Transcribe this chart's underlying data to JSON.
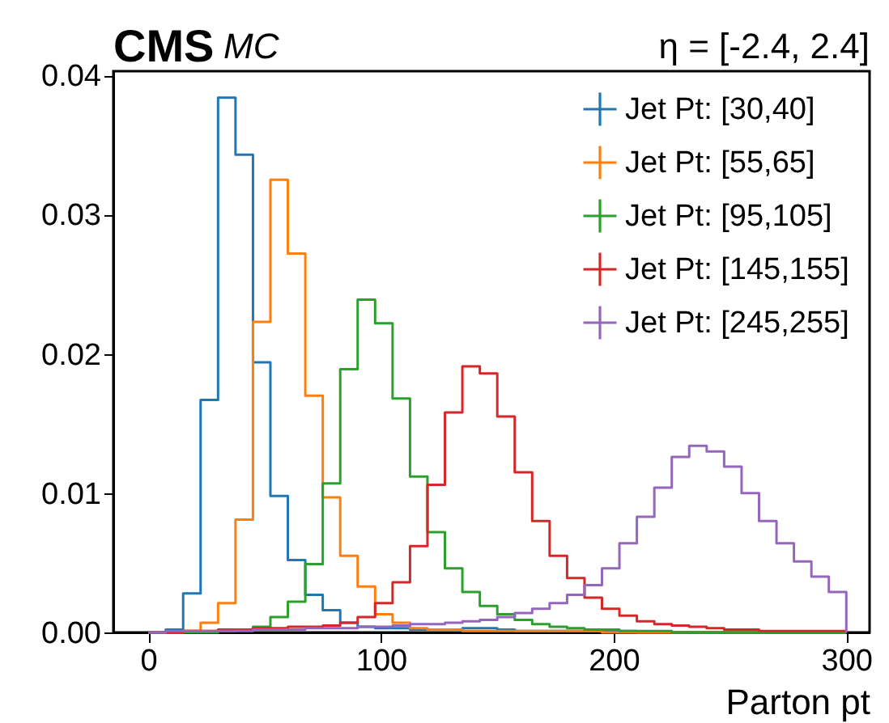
{
  "chart_data": {
    "type": "histogram",
    "title": "CMS",
    "xlabel": "Parton pt",
    "annotations": [
      "MC",
      "η = [-2.4, 2.4]"
    ],
    "bins": [
      0,
      7.5,
      15,
      22.5,
      30,
      37.5,
      45,
      52.5,
      60,
      67.5,
      75,
      82.5,
      90,
      97.5,
      105,
      112.5,
      120,
      127.5,
      135,
      142.5,
      150,
      157.5,
      165,
      172.5,
      180,
      187.5,
      195,
      202.5,
      210,
      217.5,
      225,
      232.5,
      240,
      247.5,
      255,
      262.5,
      270,
      277.5,
      285,
      292.5,
      300
    ],
    "series": [
      {
        "name": "Jet Pt: [30,40]",
        "color": "#1f77b4",
        "values": [
          0,
          0.0002,
          0.0028,
          0.0167,
          0.0384,
          0.0343,
          0.0194,
          0.0098,
          0.0052,
          0.0027,
          0.0016,
          0.0007,
          0.0004,
          0.0003,
          0.0003,
          0.0002,
          0.0002,
          0.0002,
          0.0003,
          0.0003,
          0.0002,
          0.0001,
          0.0001,
          0.0001,
          0.0001,
          0.0001,
          0.0001,
          0.0001,
          0,
          0,
          0,
          0,
          0,
          0,
          0,
          0,
          0,
          0,
          0,
          0
        ]
      },
      {
        "name": "Jet Pt: [55,65]",
        "color": "#ff7f0e",
        "values": [
          0,
          0,
          0.0001,
          0.0007,
          0.0021,
          0.0081,
          0.0223,
          0.0325,
          0.0272,
          0.017,
          0.0097,
          0.0055,
          0.0033,
          0.0013,
          0.0007,
          0.0003,
          0.0002,
          0.0002,
          0.0001,
          0.0001,
          0.0001,
          0.0001,
          0.0001,
          0.0001,
          0.0001,
          0.0001,
          0,
          0,
          0,
          0,
          0,
          0,
          0,
          0,
          0,
          0,
          0,
          0,
          0,
          0
        ]
      },
      {
        "name": "Jet Pt: [95,105]",
        "color": "#2ca02c",
        "values": [
          0,
          0,
          0,
          0,
          0.0001,
          0.0002,
          0.0004,
          0.0011,
          0.0022,
          0.0049,
          0.0107,
          0.0189,
          0.0239,
          0.0222,
          0.0168,
          0.0112,
          0.0072,
          0.0046,
          0.0029,
          0.0019,
          0.0013,
          0.0009,
          0.0006,
          0.0004,
          0.0003,
          0.0002,
          0.0002,
          0.0001,
          0.0001,
          0.0001,
          0,
          0,
          0,
          0,
          0,
          0,
          0,
          0,
          0,
          0
        ]
      },
      {
        "name": "Jet Pt: [145,155]",
        "color": "#d62728",
        "values": [
          0,
          0,
          0.0001,
          0.0001,
          0.0002,
          0.0002,
          0.0003,
          0.0003,
          0.0004,
          0.0004,
          0.0005,
          0.0007,
          0.0011,
          0.0021,
          0.0036,
          0.0062,
          0.0106,
          0.0158,
          0.0191,
          0.0186,
          0.0155,
          0.0115,
          0.008,
          0.0055,
          0.0039,
          0.0025,
          0.0017,
          0.0012,
          0.0008,
          0.0006,
          0.0005,
          0.0004,
          0.0003,
          0.0002,
          0.0002,
          0.0001,
          0.0001,
          0.0001,
          0.0001,
          0.0001
        ]
      },
      {
        "name": "Jet Pt: [245,255]",
        "color": "#9467bd",
        "values": [
          0,
          0.0001,
          0.0001,
          0.0001,
          0.0001,
          0.0001,
          0.0002,
          0.0002,
          0.0002,
          0.0003,
          0.0003,
          0.0003,
          0.0004,
          0.0004,
          0.0005,
          0.0006,
          0.0006,
          0.0007,
          0.0008,
          0.0009,
          0.0011,
          0.0014,
          0.0017,
          0.0021,
          0.0027,
          0.0034,
          0.0046,
          0.0064,
          0.0083,
          0.0104,
          0.0126,
          0.0134,
          0.013,
          0.0119,
          0.01,
          0.008,
          0.0064,
          0.0051,
          0.004,
          0.0029
        ]
      }
    ],
    "xlim": [
      -15,
      310
    ],
    "xticks": [
      0,
      100,
      200,
      300
    ],
    "ylim": [
      0,
      0.0403
    ],
    "yticks": [
      {
        "value": 0,
        "label": "0.00"
      },
      {
        "value": 0.01,
        "label": "0.01"
      },
      {
        "value": 0.02,
        "label": "0.02"
      },
      {
        "value": 0.03,
        "label": "0.03"
      },
      {
        "value": 0.04,
        "label": "0.04"
      }
    ],
    "legend": "top right",
    "marker": "cross",
    "grid": false
  }
}
